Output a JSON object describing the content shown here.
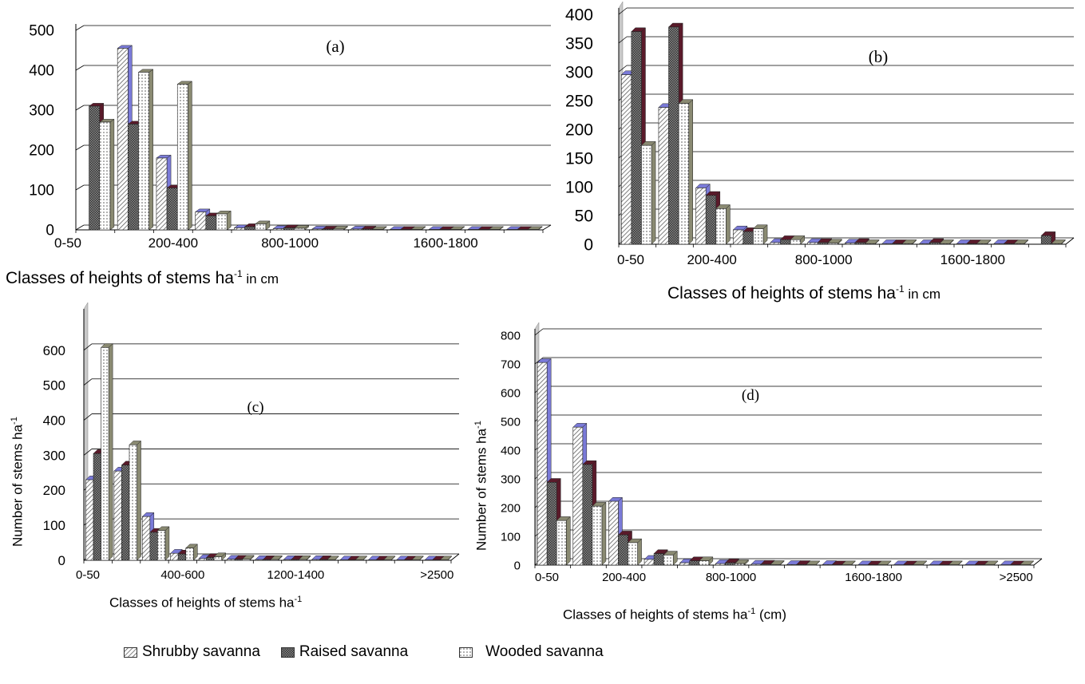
{
  "legend": [
    {
      "name": "Shrubby savanna",
      "pattern": "hatch"
    },
    {
      "name": "Raised savanna",
      "pattern": "cross"
    },
    {
      "name": "Wooded savanna",
      "pattern": "dots"
    }
  ],
  "colors": {
    "grid": "#000000",
    "wall": "#c8c8c8",
    "bar_side_gray": "#8a8a72",
    "bar_side_blue": "#7a7ad8",
    "bar_side_maroon": "#5a1a2a"
  },
  "chart_data": [
    {
      "type": "bar",
      "panel_label": "(a)",
      "xlabel": "Classes of heights of stems ha",
      "xlabel_sup": "-1",
      "xlabel_suffix": " in cm",
      "ylabel": "",
      "ylabel_sup": "",
      "ylim": [
        0,
        500
      ],
      "yticks": [
        0,
        100,
        200,
        300,
        400,
        500
      ],
      "tick_labels": [
        "0-50",
        "200-400",
        "800-1000",
        "1600-1800"
      ],
      "tick_label_indices": [
        0,
        2,
        5,
        9
      ],
      "num_categories": 12,
      "series": [
        {
          "name": "Shrubby savanna",
          "values": [
            0,
            455,
            180,
            45,
            5,
            3,
            2,
            2,
            1,
            1,
            1,
            1
          ]
        },
        {
          "name": "Raised savanna",
          "values": [
            310,
            265,
            105,
            35,
            8,
            5,
            2,
            2,
            1,
            1,
            1,
            1
          ]
        },
        {
          "name": "Wooded savanna",
          "values": [
            270,
            395,
            365,
            40,
            15,
            4,
            2,
            1,
            1,
            1,
            1,
            1
          ]
        }
      ]
    },
    {
      "type": "bar",
      "panel_label": "(b)",
      "xlabel": "Classes of heights of stems ha",
      "xlabel_sup": "-1",
      "xlabel_suffix": " in cm",
      "ylabel": "",
      "ylabel_sup": "",
      "ylim": [
        0,
        400
      ],
      "yticks": [
        0,
        50,
        100,
        150,
        200,
        250,
        300,
        350,
        400
      ],
      "tick_labels": [
        "0-50",
        "200-400",
        "800-1000",
        "1600-1800"
      ],
      "tick_label_indices": [
        0,
        2,
        5,
        9
      ],
      "num_categories": 12,
      "series": [
        {
          "name": "Shrubby savanna",
          "values": [
            295,
            238,
            98,
            25,
            3,
            3,
            2,
            1,
            1,
            1,
            1,
            0
          ]
        },
        {
          "name": "Raised savanna",
          "values": [
            370,
            378,
            85,
            22,
            8,
            3,
            3,
            1,
            3,
            1,
            1,
            15
          ]
        },
        {
          "name": "Wooded savanna",
          "values": [
            172,
            245,
            62,
            27,
            8,
            2,
            1,
            1,
            1,
            1,
            1,
            1
          ]
        }
      ]
    },
    {
      "type": "bar",
      "panel_label": "(c)",
      "xlabel": "Classes of heights of stems ha",
      "xlabel_sup": "-1",
      "xlabel_suffix": "",
      "ylabel": "Number of stems ha",
      "ylabel_sup": "-1",
      "ylim": [
        0,
        700
      ],
      "yticks": [
        0,
        100,
        200,
        300,
        400,
        500,
        600
      ],
      "tick_labels": [
        "0-50",
        "400-600",
        "1200-1400",
        ">2500"
      ],
      "tick_label_indices": [
        0,
        3,
        7,
        12
      ],
      "num_categories": 13,
      "series": [
        {
          "name": "Shrubby savanna",
          "values": [
            230,
            255,
            125,
            20,
            5,
            3,
            2,
            2,
            2,
            1,
            1,
            1,
            1
          ]
        },
        {
          "name": "Raised savanna",
          "values": [
            305,
            272,
            80,
            18,
            8,
            3,
            2,
            2,
            2,
            1,
            1,
            1,
            1
          ]
        },
        {
          "name": "Wooded savanna",
          "values": [
            608,
            330,
            85,
            35,
            10,
            3,
            2,
            2,
            1,
            1,
            1,
            1,
            1
          ]
        }
      ]
    },
    {
      "type": "bar",
      "panel_label": "(d)",
      "xlabel": "Classes of heights of stems ha",
      "xlabel_sup": "-1",
      "xlabel_suffix": " (cm)",
      "ylabel": "Number of stems ha",
      "ylabel_sup": "-1",
      "ylim": [
        0,
        800
      ],
      "yticks": [
        0,
        100,
        200,
        300,
        400,
        500,
        600,
        700,
        800
      ],
      "tick_labels": [
        "0-50",
        "200-400",
        "800-1000",
        "1600-1800",
        ">2500"
      ],
      "tick_label_indices": [
        0,
        2,
        5,
        9,
        13
      ],
      "num_categories": 14,
      "series": [
        {
          "name": "Shrubby savanna",
          "values": [
            705,
            480,
            222,
            20,
            8,
            5,
            3,
            2,
            2,
            1,
            1,
            1,
            1,
            1
          ]
        },
        {
          "name": "Raised savanna",
          "values": [
            288,
            350,
            105,
            40,
            15,
            8,
            3,
            2,
            1,
            1,
            1,
            1,
            1,
            1
          ]
        },
        {
          "name": "Wooded savanna",
          "values": [
            155,
            205,
            78,
            35,
            15,
            5,
            2,
            1,
            1,
            1,
            1,
            1,
            1,
            1
          ]
        }
      ]
    }
  ]
}
